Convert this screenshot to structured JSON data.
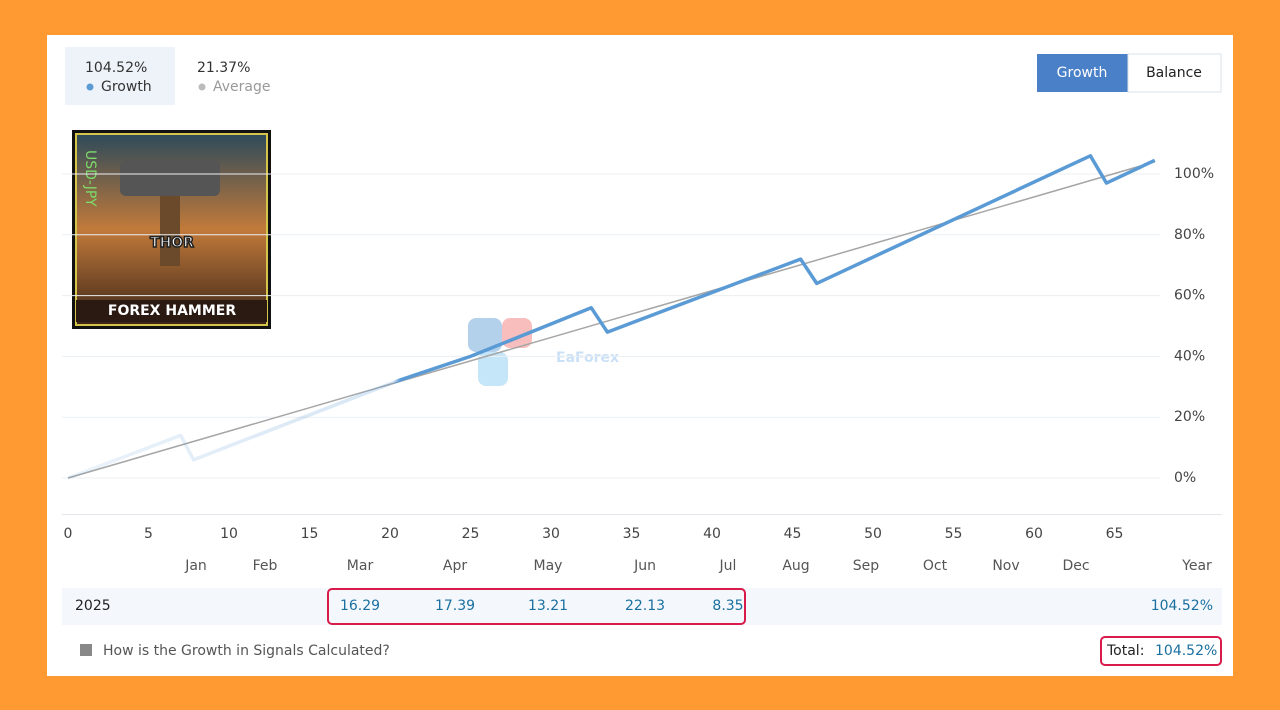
{
  "header": {
    "stats": [
      {
        "value": "104.52%",
        "label": "Growth"
      },
      {
        "value": "21.37%",
        "label": "Average"
      }
    ],
    "tabs": [
      "Growth",
      "Balance"
    ]
  },
  "logo": {
    "title": "THOR",
    "subtitle": "FOREX HAMMER",
    "pair": "USD-JPY"
  },
  "watermark": "EaForex",
  "chart_data": {
    "type": "line",
    "series": [
      {
        "name": "Growth",
        "color": "#5b9bd5",
        "x": [
          0,
          7,
          7.8,
          20.5,
          25,
          32.5,
          33.5,
          45.5,
          46.5,
          63.5,
          64.5,
          67.5
        ],
        "values": [
          0,
          14,
          6,
          32,
          40,
          56,
          48,
          72,
          64,
          106,
          97,
          104.52
        ]
      },
      {
        "name": "Average",
        "color": "#a6a6a6",
        "x": [
          0,
          67.5
        ],
        "values": [
          0,
          104
        ]
      }
    ],
    "xlim": [
      0,
      68
    ],
    "xticks": [
      0,
      5,
      10,
      15,
      20,
      25,
      30,
      35,
      40,
      45,
      50,
      55,
      60,
      65
    ],
    "ylim": [
      -12,
      115
    ],
    "yticks": [
      {
        "value": 0,
        "label": "0%"
      },
      {
        "value": 20,
        "label": "20%"
      },
      {
        "value": 40,
        "label": "40%"
      },
      {
        "value": 60,
        "label": "60%"
      },
      {
        "value": 80,
        "label": "80%"
      },
      {
        "value": 100,
        "label": "100%"
      }
    ],
    "grid": true
  },
  "table": {
    "months": [
      "Jan",
      "Feb",
      "Mar",
      "Apr",
      "May",
      "Jun",
      "Jul",
      "Aug",
      "Sep",
      "Oct",
      "Nov",
      "Dec"
    ],
    "year_label": "Year",
    "rows": [
      {
        "year": "2025",
        "values": [
          null,
          null,
          16.29,
          17.39,
          13.21,
          22.13,
          8.35,
          null,
          null,
          null,
          null,
          null
        ],
        "total": "104.52%"
      }
    ]
  },
  "footer": {
    "link": "How is the Growth in Signals Calculated?",
    "total_label": "Total:",
    "total_value": "104.52%"
  }
}
